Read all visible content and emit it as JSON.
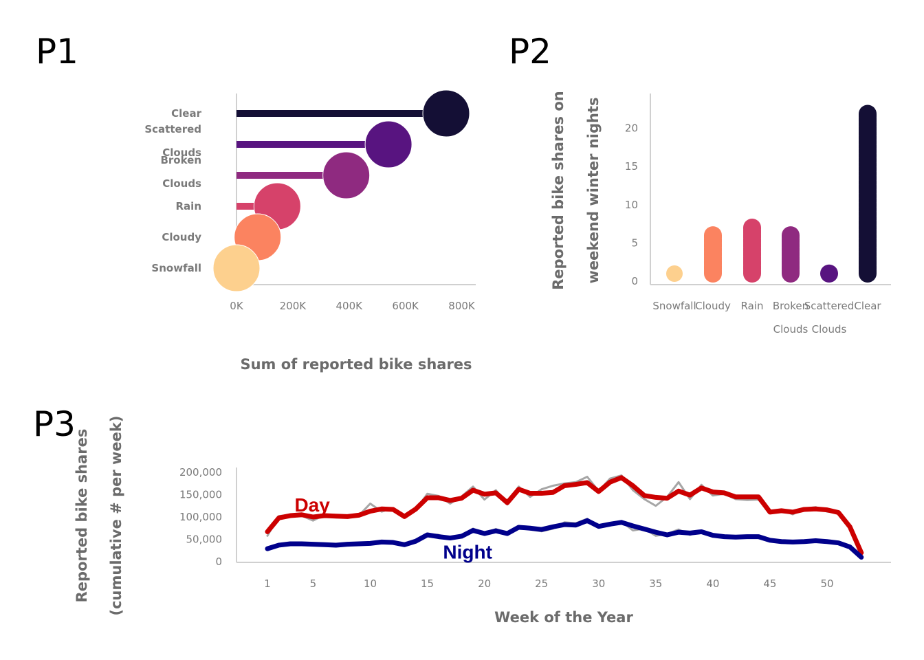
{
  "panels": {
    "p1": "P1",
    "p2": "P2",
    "p3": "P3"
  },
  "chart_data": [
    {
      "panel": "P1",
      "type": "bar",
      "orientation": "horizontal lollipop",
      "categories": [
        "Clear",
        "Scattered Clouds",
        "Broken Clouds",
        "Rain",
        "Cloudy",
        "Snowfall"
      ],
      "category_lines": [
        [
          "Clear"
        ],
        [
          "Scattered",
          "Clouds"
        ],
        [
          "Broken",
          "Clouds"
        ],
        [
          "Rain"
        ],
        [
          "Cloudy"
        ],
        [
          "Snowfall"
        ]
      ],
      "values": [
        745000,
        540000,
        390000,
        145000,
        75000,
        0
      ],
      "colors": [
        "#140f35",
        "#581480",
        "#8f2a80",
        "#d6426a",
        "#fb8360",
        "#fdd08e"
      ],
      "xlim": [
        0,
        850000
      ],
      "xticks": [
        0,
        200000,
        400000,
        600000,
        800000
      ],
      "xtick_labels": [
        "0K",
        "200K",
        "400K",
        "600K",
        "800K"
      ],
      "xlabel": "Sum of reported bike shares",
      "ylabel": ""
    },
    {
      "panel": "P2",
      "type": "bar",
      "orientation": "vertical dotted",
      "categories": [
        "Snowfall",
        "Cloudy",
        "Rain",
        "Broken Clouds",
        "Scattered Clouds",
        "Clear"
      ],
      "category_lines": [
        [
          "Snowfall"
        ],
        [
          "Cloudy"
        ],
        [
          "Rain"
        ],
        [
          "Broken",
          "Clouds"
        ],
        [
          "Scattered",
          "Clouds"
        ],
        [
          "Clear"
        ]
      ],
      "values": [
        1,
        7,
        8,
        7,
        2,
        23
      ],
      "colors": [
        "#fdd08e",
        "#fb8360",
        "#d6426a",
        "#8f2a80",
        "#581480",
        "#140f35"
      ],
      "ylim": [
        0,
        24
      ],
      "yticks": [
        0,
        5,
        10,
        15,
        20
      ],
      "ylabel_lines": [
        "Reported bike shares on",
        "weekend winter nights"
      ],
      "xlabel": ""
    },
    {
      "panel": "P3",
      "type": "line",
      "x": [
        1,
        2,
        3,
        4,
        5,
        6,
        7,
        8,
        9,
        10,
        11,
        12,
        13,
        14,
        15,
        16,
        17,
        18,
        19,
        20,
        21,
        22,
        23,
        24,
        25,
        26,
        27,
        28,
        29,
        30,
        31,
        32,
        33,
        34,
        35,
        36,
        37,
        38,
        39,
        40,
        41,
        42,
        43,
        44,
        45,
        46,
        47,
        48,
        49,
        50,
        51,
        52,
        53
      ],
      "series": [
        {
          "name": "Day",
          "color": "#cc0000",
          "values": [
            67000,
            98000,
            103000,
            105000,
            100000,
            103000,
            102000,
            101000,
            104000,
            113000,
            118000,
            117000,
            101000,
            118000,
            143000,
            143000,
            137000,
            142000,
            160000,
            151000,
            154000,
            132000,
            162000,
            153000,
            153000,
            155000,
            170000,
            173000,
            177000,
            157000,
            178000,
            188000,
            170000,
            148000,
            144000,
            142000,
            158000,
            149000,
            165000,
            156000,
            154000,
            145000,
            145000,
            145000,
            111000,
            114000,
            111000,
            117000,
            118000,
            116000,
            110000,
            78000,
            20000
          ]
        },
        {
          "name": "Night",
          "color": "#00008b",
          "values": [
            29000,
            37000,
            40000,
            40000,
            39000,
            38000,
            37000,
            39000,
            40000,
            41000,
            44000,
            43000,
            38000,
            46000,
            60000,
            56000,
            53000,
            57000,
            70000,
            63000,
            69000,
            63000,
            77000,
            75000,
            72000,
            78000,
            83000,
            82000,
            92000,
            79000,
            84000,
            88000,
            80000,
            73000,
            66000,
            60000,
            66000,
            64000,
            67000,
            59000,
            56000,
            55000,
            56000,
            56000,
            48000,
            45000,
            44000,
            45000,
            47000,
            45000,
            42000,
            33000,
            10000
          ]
        },
        {
          "name": "",
          "color": "#a6a6a6",
          "values": [
            58000,
            102000,
            105000,
            103000,
            92000,
            105000,
            99000,
            100000,
            103000,
            130000,
            112000,
            120000,
            104000,
            117000,
            152000,
            147000,
            130000,
            146000,
            168000,
            139000,
            160000,
            128000,
            168000,
            145000,
            162000,
            170000,
            175000,
            178000,
            190000,
            158000,
            186000,
            193000,
            160000,
            140000,
            125000,
            145000,
            178000,
            140000,
            172000,
            148000,
            152000,
            140000,
            138000,
            139000,
            109000,
            116000,
            106000,
            119000,
            122000,
            112000,
            110000,
            79000,
            22000
          ]
        },
        {
          "name": "",
          "color": "#a6a6a6",
          "values": [
            26000,
            38000,
            39000,
            40000,
            38000,
            39000,
            36000,
            39000,
            41000,
            42000,
            45000,
            42000,
            37000,
            47000,
            62000,
            60000,
            51000,
            59000,
            74000,
            62000,
            73000,
            63000,
            80000,
            72000,
            68000,
            74000,
            88000,
            86000,
            96000,
            77000,
            87000,
            90000,
            70000,
            74000,
            58000,
            62000,
            72000,
            60000,
            70000,
            56000,
            59000,
            53000,
            56000,
            57000,
            48000,
            46000,
            42000,
            46000,
            48000,
            44000,
            42000,
            34000,
            12000
          ]
        }
      ],
      "annotations": [
        {
          "text": "Day",
          "x": 5,
          "y": 128000,
          "color": "#cc0000"
        },
        {
          "text": "Night",
          "x": 18,
          "y": 22000,
          "color": "#00008b"
        }
      ],
      "ylim": [
        0,
        200000
      ],
      "yticks": [
        0,
        50000,
        100000,
        150000,
        200000
      ],
      "ytick_labels": [
        "0",
        "50,000",
        "100,000",
        "150,000",
        "200,000"
      ],
      "xticks": [
        1,
        5,
        10,
        15,
        20,
        25,
        30,
        35,
        40,
        45,
        50
      ],
      "xlim": [
        1,
        53
      ],
      "xlabel": "Week of the Year",
      "ylabel_lines": [
        "Reported bike shares",
        "(cumulative # per week)"
      ]
    }
  ]
}
